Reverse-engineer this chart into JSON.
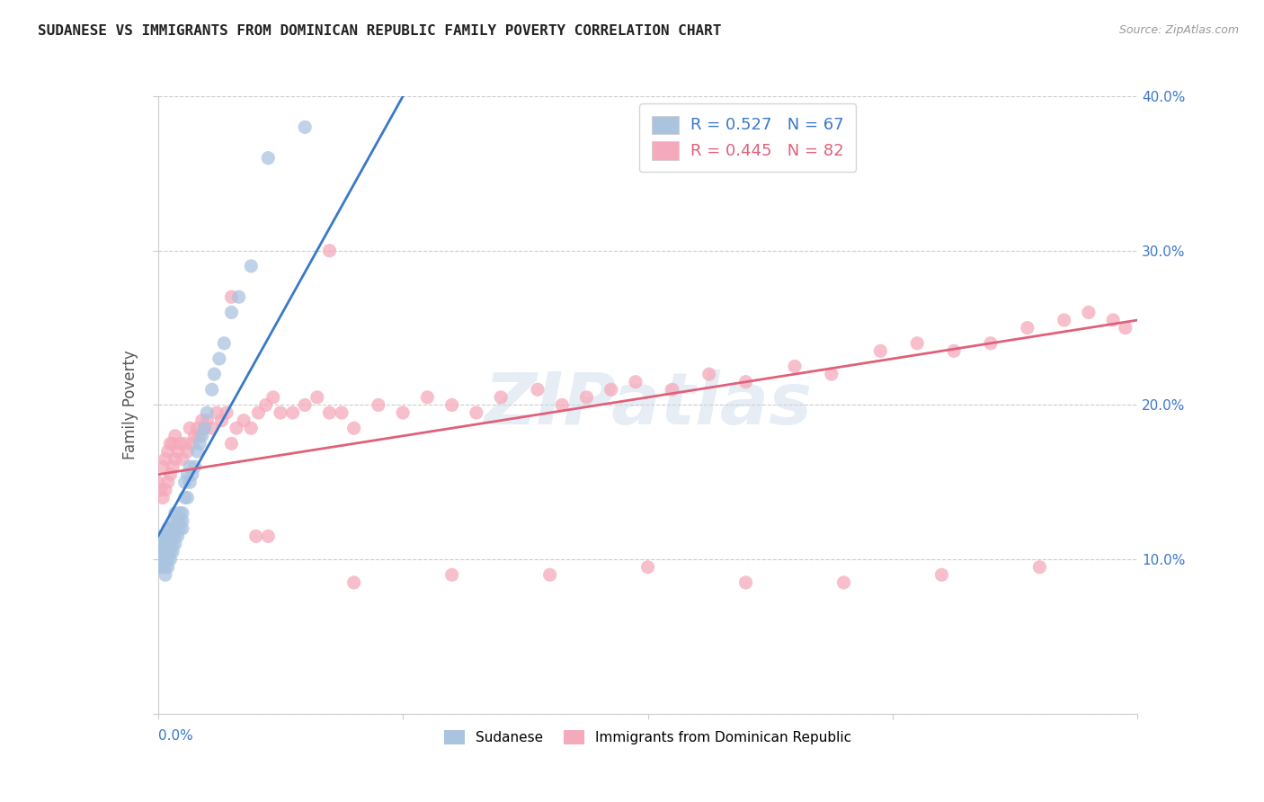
{
  "title": "SUDANESE VS IMMIGRANTS FROM DOMINICAN REPUBLIC FAMILY POVERTY CORRELATION CHART",
  "source": "Source: ZipAtlas.com",
  "ylabel": "Family Poverty",
  "xlim": [
    0.0,
    0.4
  ],
  "ylim": [
    0.0,
    0.4
  ],
  "xtick_labels_bottom": [
    "0.0%",
    "40.0%"
  ],
  "xtick_values_bottom": [
    0.0,
    0.4
  ],
  "ytick_labels_right": [
    "10.0%",
    "20.0%",
    "30.0%",
    "40.0%"
  ],
  "ytick_values_right": [
    0.1,
    0.2,
    0.3,
    0.4
  ],
  "legend_label1": "Sudanese",
  "legend_label2": "Immigrants from Dominican Republic",
  "R1": 0.527,
  "N1": 67,
  "R2": 0.445,
  "N2": 82,
  "color1": "#aac4e0",
  "color2": "#f5aabb",
  "line_color1": "#3a78c9",
  "line_color2": "#e0607a",
  "watermark": "ZIPatlas",
  "sudanese_x": [
    0.0,
    0.0,
    0.001,
    0.001,
    0.001,
    0.001,
    0.002,
    0.002,
    0.002,
    0.002,
    0.002,
    0.003,
    0.003,
    0.003,
    0.003,
    0.003,
    0.003,
    0.004,
    0.004,
    0.004,
    0.004,
    0.004,
    0.004,
    0.005,
    0.005,
    0.005,
    0.005,
    0.005,
    0.006,
    0.006,
    0.006,
    0.006,
    0.007,
    0.007,
    0.007,
    0.007,
    0.008,
    0.008,
    0.008,
    0.009,
    0.009,
    0.009,
    0.01,
    0.01,
    0.01,
    0.011,
    0.011,
    0.012,
    0.012,
    0.013,
    0.013,
    0.014,
    0.015,
    0.016,
    0.017,
    0.018,
    0.019,
    0.02,
    0.022,
    0.023,
    0.025,
    0.027,
    0.03,
    0.033,
    0.038,
    0.045,
    0.06
  ],
  "sudanese_y": [
    0.095,
    0.1,
    0.1,
    0.105,
    0.11,
    0.115,
    0.095,
    0.1,
    0.105,
    0.11,
    0.115,
    0.09,
    0.095,
    0.1,
    0.105,
    0.11,
    0.115,
    0.095,
    0.1,
    0.105,
    0.11,
    0.115,
    0.12,
    0.1,
    0.105,
    0.11,
    0.115,
    0.12,
    0.105,
    0.11,
    0.115,
    0.125,
    0.11,
    0.115,
    0.12,
    0.13,
    0.115,
    0.12,
    0.125,
    0.12,
    0.125,
    0.13,
    0.12,
    0.125,
    0.13,
    0.14,
    0.15,
    0.14,
    0.155,
    0.15,
    0.16,
    0.155,
    0.16,
    0.17,
    0.175,
    0.18,
    0.185,
    0.195,
    0.21,
    0.22,
    0.23,
    0.24,
    0.26,
    0.27,
    0.29,
    0.36,
    0.38
  ],
  "dominican_x": [
    0.0,
    0.001,
    0.002,
    0.002,
    0.003,
    0.003,
    0.004,
    0.004,
    0.005,
    0.005,
    0.006,
    0.006,
    0.007,
    0.007,
    0.008,
    0.009,
    0.01,
    0.011,
    0.012,
    0.013,
    0.014,
    0.015,
    0.016,
    0.017,
    0.018,
    0.019,
    0.02,
    0.022,
    0.024,
    0.026,
    0.028,
    0.03,
    0.032,
    0.035,
    0.038,
    0.041,
    0.044,
    0.047,
    0.05,
    0.055,
    0.06,
    0.065,
    0.07,
    0.075,
    0.08,
    0.09,
    0.1,
    0.11,
    0.12,
    0.13,
    0.14,
    0.155,
    0.165,
    0.175,
    0.185,
    0.195,
    0.21,
    0.225,
    0.24,
    0.26,
    0.275,
    0.295,
    0.31,
    0.325,
    0.34,
    0.355,
    0.37,
    0.38,
    0.39,
    0.395,
    0.04,
    0.045,
    0.08,
    0.12,
    0.16,
    0.2,
    0.24,
    0.28,
    0.32,
    0.36,
    0.03,
    0.07
  ],
  "dominican_y": [
    0.15,
    0.145,
    0.14,
    0.16,
    0.145,
    0.165,
    0.15,
    0.17,
    0.155,
    0.175,
    0.16,
    0.175,
    0.165,
    0.18,
    0.17,
    0.175,
    0.165,
    0.175,
    0.17,
    0.185,
    0.175,
    0.18,
    0.185,
    0.18,
    0.19,
    0.185,
    0.19,
    0.185,
    0.195,
    0.19,
    0.195,
    0.175,
    0.185,
    0.19,
    0.185,
    0.195,
    0.2,
    0.205,
    0.195,
    0.195,
    0.2,
    0.205,
    0.195,
    0.195,
    0.185,
    0.2,
    0.195,
    0.205,
    0.2,
    0.195,
    0.205,
    0.21,
    0.2,
    0.205,
    0.21,
    0.215,
    0.21,
    0.22,
    0.215,
    0.225,
    0.22,
    0.235,
    0.24,
    0.235,
    0.24,
    0.25,
    0.255,
    0.26,
    0.255,
    0.25,
    0.115,
    0.115,
    0.085,
    0.09,
    0.09,
    0.095,
    0.085,
    0.085,
    0.09,
    0.095,
    0.27,
    0.3
  ],
  "blue_line_x": [
    0.0,
    0.1
  ],
  "blue_line_y": [
    0.115,
    0.4
  ],
  "pink_line_x": [
    0.0,
    0.4
  ],
  "pink_line_y": [
    0.155,
    0.255
  ]
}
